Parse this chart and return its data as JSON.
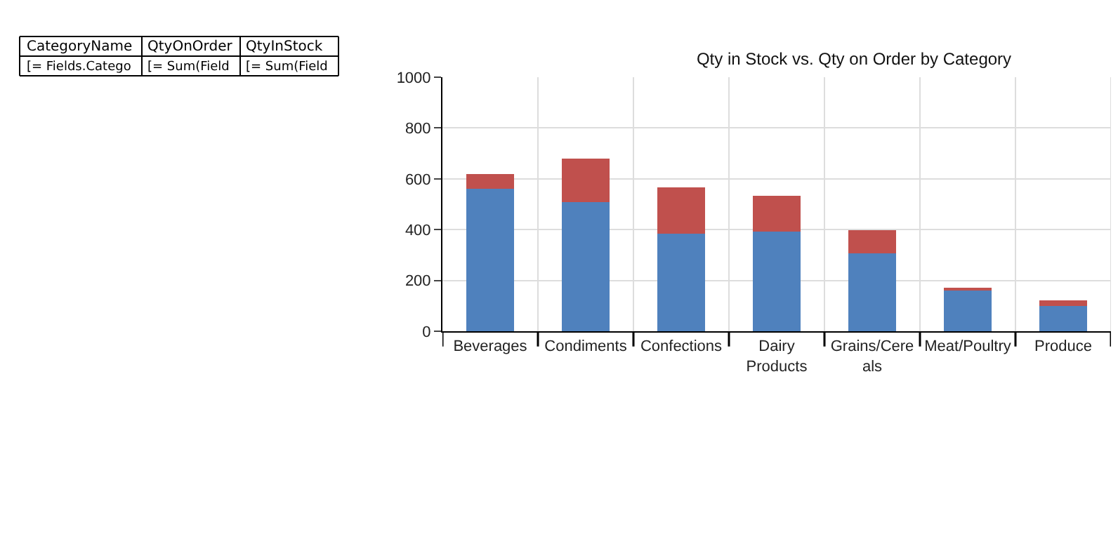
{
  "chart_data": {
    "type": "bar",
    "title": "Qty in Stock vs. Qty on Order by Category",
    "stacked": true,
    "categories": [
      "Beverages",
      "Condiments",
      "Confections",
      "Dairy Products",
      "Grains/Cereals",
      "Meat/Poultry",
      "Produce"
    ],
    "series": [
      {
        "color": "#4f81bd",
        "values": [
          560,
          507,
          385,
          393,
          307,
          165,
          100
        ]
      },
      {
        "color": "#c0504d",
        "values": [
          60,
          173,
          182,
          140,
          91,
          4,
          21
        ]
      }
    ],
    "ylim": [
      0,
      1000
    ],
    "yticks": [
      0,
      200,
      400,
      600,
      800,
      1000
    ],
    "grid": true,
    "annotations": [
      "CategoryName",
      "QtyOnOrder",
      "QtyInStock",
      "[= Fields.Catego",
      "[= Sum(Field",
      "[= Sum(Field"
    ]
  }
}
